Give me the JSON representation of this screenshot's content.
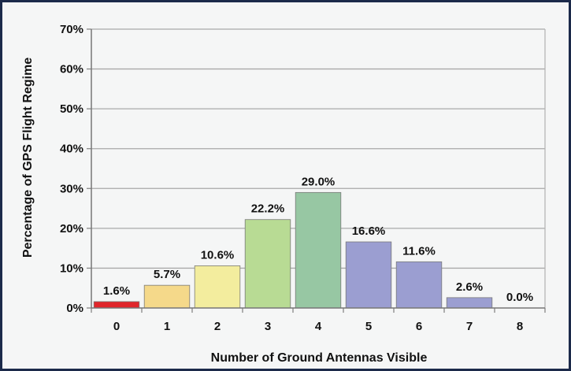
{
  "chart_data": {
    "type": "bar",
    "title": "",
    "xlabel": "Number of Ground Antennas Visible",
    "ylabel": "Percentage of GPS Flight Regime",
    "categories": [
      "0",
      "1",
      "2",
      "3",
      "4",
      "5",
      "6",
      "7",
      "8"
    ],
    "values": [
      1.6,
      5.7,
      10.6,
      22.2,
      29.0,
      16.6,
      11.6,
      2.6,
      0.0
    ],
    "data_labels": [
      "1.6%",
      "5.7%",
      "10.6%",
      "22.2%",
      "29.0%",
      "16.6%",
      "11.6%",
      "2.6%",
      "0.0%"
    ],
    "bar_colors": [
      "#e0262b",
      "#f5d98a",
      "#f3ed9e",
      "#b8db94",
      "#97c7a3",
      "#9b9ed1",
      "#9b9ed1",
      "#9b9ed1",
      "#9b9ed1"
    ],
    "ylim": [
      0,
      70
    ],
    "yticks": [
      0,
      10,
      20,
      30,
      40,
      50,
      60,
      70
    ],
    "ytick_labels": [
      "0%",
      "10%",
      "20%",
      "30%",
      "40%",
      "50%",
      "60%",
      "70%"
    ],
    "grid": true,
    "legend": "none"
  }
}
